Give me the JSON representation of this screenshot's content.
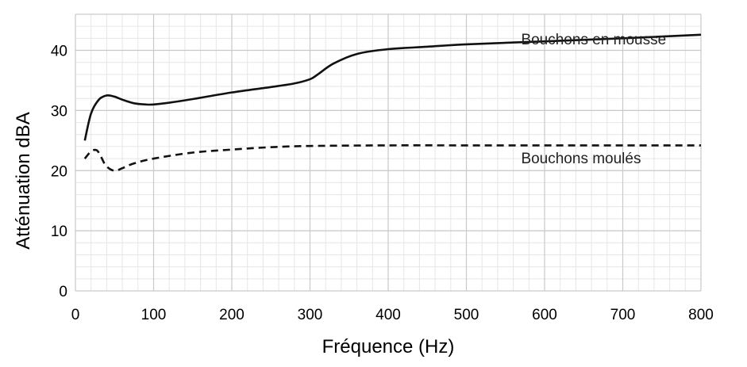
{
  "chart_data": {
    "type": "line",
    "title": "",
    "xlabel": "Fréquence (Hz)",
    "ylabel": "Atténuation dBA",
    "xlim": [
      0,
      800
    ],
    "ylim": [
      0,
      46
    ],
    "x_ticks": [
      0,
      100,
      200,
      300,
      400,
      500,
      600,
      700,
      800
    ],
    "y_ticks": [
      0,
      10,
      20,
      30,
      40
    ],
    "grid": true,
    "legend": "inline labels",
    "series": [
      {
        "name": "Bouchons en mousse",
        "style": "solid",
        "color": "#111111",
        "x": [
          12,
          20,
          30,
          40,
          50,
          60,
          75,
          90,
          100,
          120,
          150,
          200,
          250,
          280,
          300,
          310,
          330,
          360,
          400,
          450,
          500,
          600,
          700,
          800
        ],
        "y": [
          25,
          29.5,
          31.8,
          32.5,
          32.3,
          31.8,
          31.2,
          31,
          31,
          31.3,
          31.9,
          33,
          33.9,
          34.5,
          35.2,
          36,
          37.8,
          39.4,
          40.2,
          40.6,
          41,
          41.5,
          42,
          42.6
        ]
      },
      {
        "name": "Bouchons moulés",
        "style": "dashed",
        "color": "#111111",
        "x": [
          12,
          20,
          27,
          32,
          38,
          45,
          52,
          60,
          75,
          100,
          150,
          200,
          250,
          300,
          400,
          500,
          600,
          700,
          800
        ],
        "y": [
          22,
          23.2,
          23.4,
          22.5,
          21,
          20.2,
          20,
          20.4,
          21.2,
          22,
          23,
          23.5,
          23.9,
          24.1,
          24.2,
          24.2,
          24.2,
          24.2,
          24.2
        ]
      }
    ]
  }
}
